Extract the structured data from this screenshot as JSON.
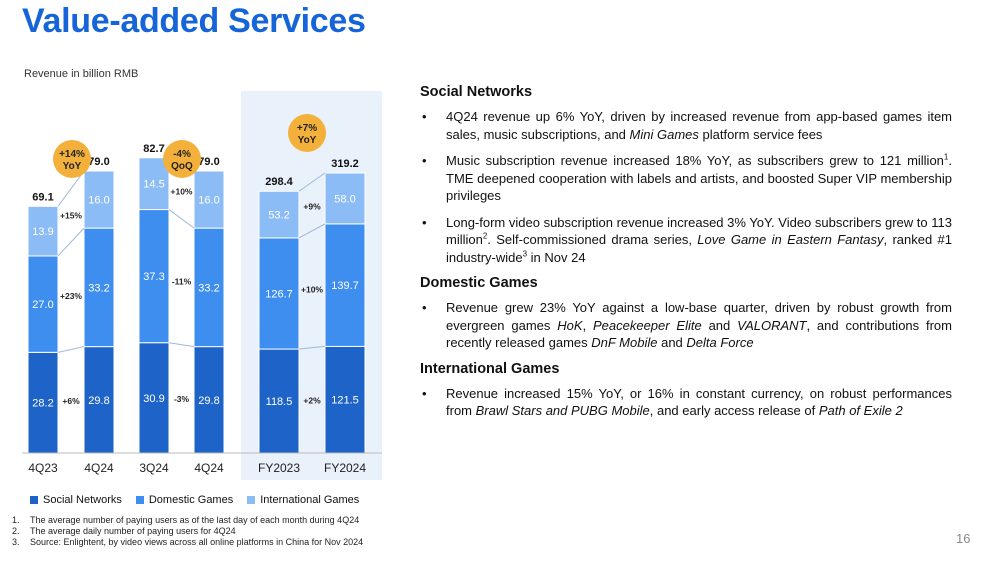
{
  "slide": {
    "title": "Value-added Services",
    "unit": "Revenue in billion RMB",
    "page_number": "16"
  },
  "chart_data": {
    "type": "bar",
    "stacked": true,
    "series_names": [
      "Social Networks",
      "Domestic Games",
      "International Games"
    ],
    "colors": {
      "social": "#1e63c7",
      "domestic": "#3e8ef0",
      "international": "#8cbcf5",
      "badge": "#f3b13b",
      "highlight": "#e9f1fb"
    },
    "groups": [
      {
        "name": "quarter-yoy",
        "badge": [
          "+14%",
          "YoY"
        ],
        "bars": [
          {
            "label": "4Q23",
            "social": 28.2,
            "domestic": 27.0,
            "international": 13.9,
            "total": "69.1"
          },
          {
            "label": "4Q24",
            "social": 29.8,
            "domestic": 33.2,
            "international": 16.0,
            "total": "79.0"
          }
        ],
        "changes": [
          "+6%",
          "+23%",
          "+15%"
        ]
      },
      {
        "name": "quarter-qoq",
        "badge": [
          "-4%",
          "QoQ"
        ],
        "bars": [
          {
            "label": "3Q24",
            "social": 30.9,
            "domestic": 37.3,
            "international": 14.5,
            "total": "82.7"
          },
          {
            "label": "4Q24",
            "social": 29.8,
            "domestic": 33.2,
            "international": 16.0,
            "total": "79.0"
          }
        ],
        "changes": [
          "-3%",
          "-11%",
          "+10%"
        ]
      },
      {
        "name": "full-year",
        "badge": [
          "+7%",
          "YoY"
        ],
        "bars": [
          {
            "label": "FY2023",
            "social": 118.5,
            "domestic": 126.7,
            "international": 53.2,
            "total": "298.4"
          },
          {
            "label": "FY2024",
            "social": 121.5,
            "domestic": 139.7,
            "international": 58.0,
            "total": "319.2"
          }
        ],
        "changes": [
          "+2%",
          "+10%",
          "+9%"
        ]
      }
    ]
  },
  "legend": [
    {
      "label": "Social Networks",
      "color": "#1e63c7"
    },
    {
      "label": "Domestic Games",
      "color": "#3e8ef0"
    },
    {
      "label": "International Games",
      "color": "#8cbcf5"
    }
  ],
  "footnotes": [
    {
      "num": "1.",
      "text": "The average number of paying users as of the last day of each month during 4Q24"
    },
    {
      "num": "2.",
      "text": "The average daily number of paying users for 4Q24"
    },
    {
      "num": "3.",
      "text": "Source: Enlightent, by video views across all online platforms in China for Nov 2024"
    }
  ],
  "sections": [
    {
      "heading": "Social Networks",
      "bullets": [
        [
          {
            "t": "4Q24 revenue up 6% YoY, driven by increased revenue from app-based games item sales, music subscriptions, and "
          },
          {
            "t": "Mini Games",
            "i": true
          },
          {
            "t": " platform service fees"
          }
        ],
        [
          {
            "t": "Music subscription revenue increased 18% YoY, as subscribers grew to 121 million"
          },
          {
            "t": "1",
            "sup": true
          },
          {
            "t": ". TME deepened cooperation with labels and artists, and boosted Super VIP membership privileges"
          }
        ],
        [
          {
            "t": "Long-form video subscription revenue increased 3% YoY. Video subscribers grew to 113 million"
          },
          {
            "t": "2",
            "sup": true
          },
          {
            "t": ". Self-commissioned drama series, "
          },
          {
            "t": "Love Game in Eastern Fantasy",
            "i": true
          },
          {
            "t": ", ranked #1 industry-wide"
          },
          {
            "t": "3",
            "sup": true
          },
          {
            "t": " in Nov 24"
          }
        ]
      ]
    },
    {
      "heading": "Domestic Games",
      "bullets": [
        [
          {
            "t": "Revenue grew 23% YoY against a low-base quarter, driven by robust growth from evergreen games "
          },
          {
            "t": "HoK",
            "i": true
          },
          {
            "t": ", "
          },
          {
            "t": "Peacekeeper Elite",
            "i": true
          },
          {
            "t": " and "
          },
          {
            "t": "VALORANT",
            "i": true
          },
          {
            "t": ", and contributions from recently released games "
          },
          {
            "t": "DnF Mobile",
            "i": true
          },
          {
            "t": " and "
          },
          {
            "t": "Delta Force",
            "i": true
          }
        ]
      ]
    },
    {
      "heading": "International Games",
      "bullets": [
        [
          {
            "t": "Revenue increased 15% YoY, or 16% in constant currency, on robust performances from "
          },
          {
            "t": "Brawl Stars and PUBG Mobile",
            "i": true
          },
          {
            "t": ", and early access release of "
          },
          {
            "t": "Path of Exile 2",
            "i": true
          }
        ]
      ]
    }
  ]
}
